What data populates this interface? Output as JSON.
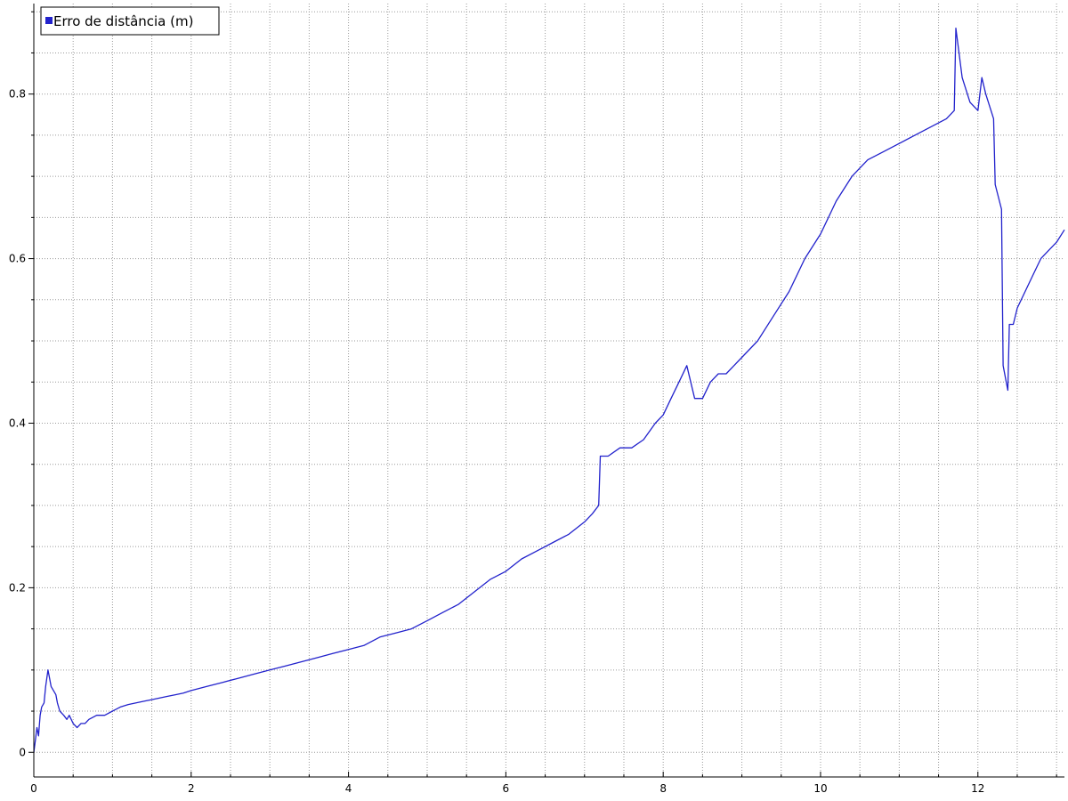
{
  "chart_data": {
    "type": "line",
    "xlim": [
      0,
      13.1
    ],
    "ylim": [
      -0.03,
      0.91
    ],
    "x_ticks": [
      0,
      2,
      4,
      6,
      8,
      10,
      12
    ],
    "x_tick_labels": [
      "0",
      "2",
      "4",
      "6",
      "8",
      "10",
      "12"
    ],
    "x_minor_step": 0.5,
    "y_ticks": [
      0,
      0.2,
      0.4,
      0.6,
      0.8
    ],
    "y_tick_labels": [
      "0",
      "0.2",
      "0.4",
      "0.6",
      "0.8"
    ],
    "y_minor_step": 0.05,
    "grid": true,
    "legend_position": "top-left",
    "series": [
      {
        "name": "Erro de distância (m)",
        "color": "#2222cc",
        "x": [
          0,
          0.02,
          0.04,
          0.06,
          0.08,
          0.1,
          0.13,
          0.15,
          0.18,
          0.2,
          0.22,
          0.25,
          0.28,
          0.3,
          0.33,
          0.38,
          0.42,
          0.45,
          0.5,
          0.55,
          0.6,
          0.65,
          0.7,
          0.8,
          0.9,
          1.0,
          1.1,
          1.2,
          1.3,
          1.4,
          1.5,
          1.6,
          1.7,
          1.8,
          1.9,
          2.0,
          2.2,
          2.4,
          2.6,
          2.8,
          3.0,
          3.2,
          3.4,
          3.6,
          3.8,
          4.0,
          4.2,
          4.4,
          4.6,
          4.8,
          5.0,
          5.2,
          5.4,
          5.6,
          5.8,
          6.0,
          6.2,
          6.4,
          6.6,
          6.8,
          7.0,
          7.1,
          7.18,
          7.2,
          7.3,
          7.45,
          7.6,
          7.75,
          7.9,
          8.0,
          8.1,
          8.2,
          8.3,
          8.4,
          8.5,
          8.6,
          8.7,
          8.8,
          8.9,
          9.0,
          9.2,
          9.4,
          9.6,
          9.8,
          10.0,
          10.2,
          10.4,
          10.6,
          10.8,
          11.0,
          11.2,
          11.4,
          11.6,
          11.7,
          11.72,
          11.8,
          11.9,
          12.0,
          12.05,
          12.1,
          12.2,
          12.22,
          12.3,
          12.32,
          12.36,
          12.38,
          12.4,
          12.45,
          12.5,
          12.6,
          12.7,
          12.8,
          12.9,
          13.0,
          13.1
        ],
        "y": [
          0.0,
          0.015,
          0.03,
          0.02,
          0.045,
          0.055,
          0.06,
          0.08,
          0.1,
          0.09,
          0.08,
          0.075,
          0.07,
          0.06,
          0.05,
          0.045,
          0.04,
          0.045,
          0.035,
          0.03,
          0.035,
          0.035,
          0.04,
          0.045,
          0.045,
          0.05,
          0.055,
          0.058,
          0.06,
          0.062,
          0.064,
          0.066,
          0.068,
          0.07,
          0.072,
          0.075,
          0.08,
          0.085,
          0.09,
          0.095,
          0.1,
          0.105,
          0.11,
          0.115,
          0.12,
          0.125,
          0.13,
          0.14,
          0.145,
          0.15,
          0.16,
          0.17,
          0.18,
          0.195,
          0.21,
          0.22,
          0.235,
          0.245,
          0.255,
          0.265,
          0.28,
          0.29,
          0.3,
          0.36,
          0.36,
          0.37,
          0.37,
          0.38,
          0.4,
          0.41,
          0.43,
          0.45,
          0.47,
          0.43,
          0.43,
          0.45,
          0.46,
          0.46,
          0.47,
          0.48,
          0.5,
          0.53,
          0.56,
          0.6,
          0.63,
          0.67,
          0.7,
          0.72,
          0.73,
          0.74,
          0.75,
          0.76,
          0.77,
          0.78,
          0.88,
          0.82,
          0.79,
          0.78,
          0.82,
          0.8,
          0.77,
          0.69,
          0.66,
          0.47,
          0.45,
          0.44,
          0.52,
          0.52,
          0.54,
          0.56,
          0.58,
          0.6,
          0.61,
          0.62,
          0.635
        ]
      }
    ]
  }
}
